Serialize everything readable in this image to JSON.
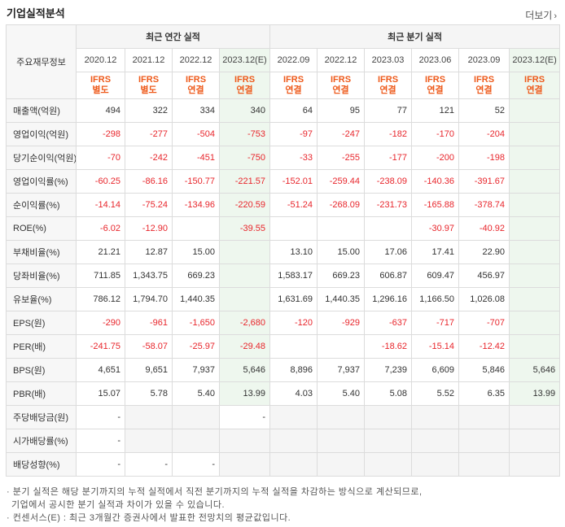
{
  "header": {
    "title": "기업실적분석",
    "more_label": "더보기"
  },
  "table": {
    "corner_label": "주요재무정보",
    "annual_title": "최근 연간 실적",
    "quarter_title": "최근 분기 실적",
    "periods": [
      {
        "date": "2020.12",
        "ifrs": "IFRS",
        "basis": "별도",
        "est": false
      },
      {
        "date": "2021.12",
        "ifrs": "IFRS",
        "basis": "별도",
        "est": false
      },
      {
        "date": "2022.12",
        "ifrs": "IFRS",
        "basis": "연결",
        "est": false
      },
      {
        "date": "2023.12(E)",
        "ifrs": "IFRS",
        "basis": "연결",
        "est": true
      },
      {
        "date": "2022.09",
        "ifrs": "IFRS",
        "basis": "연결",
        "est": false
      },
      {
        "date": "2022.12",
        "ifrs": "IFRS",
        "basis": "연결",
        "est": false
      },
      {
        "date": "2023.03",
        "ifrs": "IFRS",
        "basis": "연결",
        "est": false
      },
      {
        "date": "2023.06",
        "ifrs": "IFRS",
        "basis": "연결",
        "est": false
      },
      {
        "date": "2023.09",
        "ifrs": "IFRS",
        "basis": "연결",
        "est": false
      },
      {
        "date": "2023.12(E)",
        "ifrs": "IFRS",
        "basis": "연결",
        "est": true
      }
    ],
    "rows": [
      {
        "label": "매출액(억원)",
        "values": [
          "494",
          "322",
          "334",
          "340",
          "64",
          "95",
          "77",
          "121",
          "52",
          ""
        ],
        "group_start": true
      },
      {
        "label": "영업이익(억원)",
        "values": [
          "-298",
          "-277",
          "-504",
          "-753",
          "-97",
          "-247",
          "-182",
          "-170",
          "-204",
          ""
        ]
      },
      {
        "label": "당기순이익(억원)",
        "values": [
          "-70",
          "-242",
          "-451",
          "-750",
          "-33",
          "-255",
          "-177",
          "-200",
          "-198",
          ""
        ]
      },
      {
        "label": "영업이익률(%)",
        "values": [
          "-60.25",
          "-86.16",
          "-150.77",
          "-221.57",
          "-152.01",
          "-259.44",
          "-238.09",
          "-140.36",
          "-391.67",
          ""
        ],
        "group_start": true
      },
      {
        "label": "순이익률(%)",
        "values": [
          "-14.14",
          "-75.24",
          "-134.96",
          "-220.59",
          "-51.24",
          "-268.09",
          "-231.73",
          "-165.88",
          "-378.74",
          ""
        ]
      },
      {
        "label": "ROE(%)",
        "values": [
          "-6.02",
          "-12.90",
          "",
          "-39.55",
          "",
          "",
          "",
          "-30.97",
          "-40.92",
          ""
        ]
      },
      {
        "label": "부채비율(%)",
        "values": [
          "21.21",
          "12.87",
          "15.00",
          "",
          "13.10",
          "15.00",
          "17.06",
          "17.41",
          "22.90",
          ""
        ],
        "group_start": true
      },
      {
        "label": "당좌비율(%)",
        "values": [
          "711.85",
          "1,343.75",
          "669.23",
          "",
          "1,583.17",
          "669.23",
          "606.87",
          "609.47",
          "456.97",
          ""
        ]
      },
      {
        "label": "유보율(%)",
        "values": [
          "786.12",
          "1,794.70",
          "1,440.35",
          "",
          "1,631.69",
          "1,440.35",
          "1,296.16",
          "1,166.50",
          "1,026.08",
          ""
        ]
      },
      {
        "label": "EPS(원)",
        "values": [
          "-290",
          "-961",
          "-1,650",
          "-2,680",
          "-120",
          "-929",
          "-637",
          "-717",
          "-707",
          ""
        ],
        "group_start": true
      },
      {
        "label": "PER(배)",
        "values": [
          "-241.75",
          "-58.07",
          "-25.97",
          "-29.48",
          "",
          "",
          "-18.62",
          "-15.14",
          "-12.42",
          ""
        ]
      },
      {
        "label": "BPS(원)",
        "values": [
          "4,651",
          "9,651",
          "7,937",
          "5,646",
          "8,896",
          "7,937",
          "7,239",
          "6,609",
          "5,846",
          "5,646"
        ]
      },
      {
        "label": "PBR(배)",
        "values": [
          "15.07",
          "5.78",
          "5.40",
          "13.99",
          "4.03",
          "5.40",
          "5.08",
          "5.52",
          "6.35",
          "13.99"
        ]
      },
      {
        "label": "주당배당금(원)",
        "values": [
          "-",
          "",
          "",
          "-",
          "",
          "",
          "",
          "",
          "",
          ""
        ],
        "group_start": true,
        "shade": true
      },
      {
        "label": "시가배당률(%)",
        "values": [
          "-",
          "",
          "",
          "",
          "",
          "",
          "",
          "",
          "",
          ""
        ],
        "shade": true
      },
      {
        "label": "배당성향(%)",
        "values": [
          "-",
          "-",
          "-",
          "",
          "",
          "",
          "",
          "",
          "",
          ""
        ],
        "shade": true
      }
    ]
  },
  "notes": [
    "· 분기 실적은 해당 분기까지의 누적 실적에서 직전 분기까지의 누적 실적을 차감하는 방식으로 계산되므로,",
    "  기업에서 공시한 분기 실적과 차이가 있을 수 있습니다.",
    "· 컨센서스(E) : 최근 3개월간 증권사에서 발표한 전망치의 평균값입니다."
  ],
  "colors": {
    "negative": "#e8262c",
    "ifrs": "#ee5a1b",
    "estimate_bg": "#eef7ee"
  }
}
